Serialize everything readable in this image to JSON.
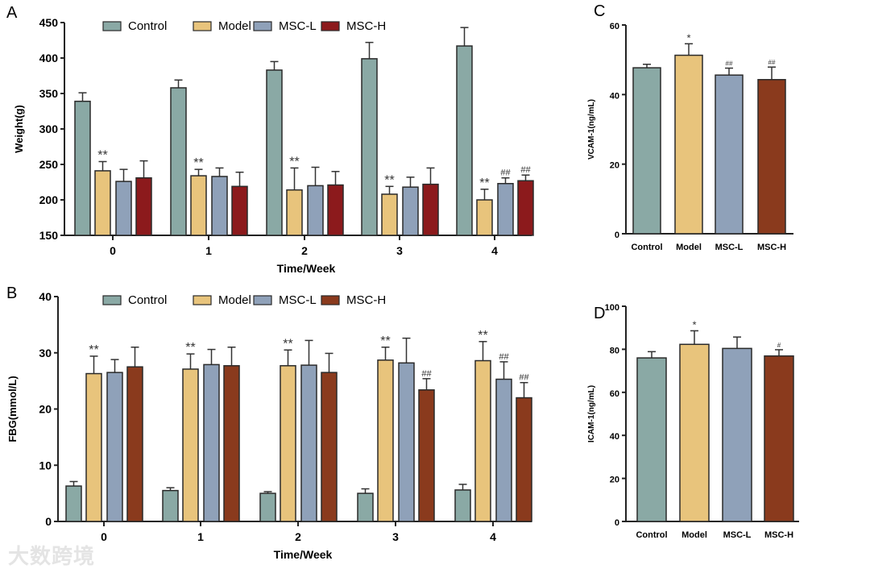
{
  "watermark": "大数跨境",
  "colors": {
    "Control": "#8aa9a5",
    "Model": "#e8c47c",
    "MSC-L": "#8fa1b9",
    "MSC-H-A": "#8c1a1c",
    "MSC-H": "#8a3a1d"
  },
  "chart_data": [
    {
      "panel": "A",
      "type": "bar",
      "title": "",
      "xlabel": "Time/Week",
      "ylabel": "Weight(g)",
      "ylim": [
        150,
        450
      ],
      "yticks": [
        150,
        200,
        250,
        300,
        350,
        400,
        450
      ],
      "categories": [
        "0",
        "1",
        "2",
        "3",
        "4"
      ],
      "legend": "top",
      "series": [
        {
          "name": "Control",
          "values": [
            339,
            358,
            383,
            399,
            417
          ],
          "errors": [
            12,
            11,
            12,
            23,
            26
          ],
          "annot": [
            "",
            "",
            "",
            "",
            ""
          ]
        },
        {
          "name": "Model",
          "values": [
            241,
            234,
            214,
            208,
            200
          ],
          "errors": [
            13,
            9,
            31,
            11,
            15
          ],
          "annot": [
            "**",
            "**",
            "**",
            "**",
            "**"
          ]
        },
        {
          "name": "MSC-L",
          "values": [
            226,
            233,
            220,
            218,
            223
          ],
          "errors": [
            17,
            12,
            26,
            14,
            8
          ],
          "annot": [
            "",
            "",
            "",
            "",
            "##"
          ]
        },
        {
          "name": "MSC-H",
          "values": [
            231,
            219,
            221,
            222,
            227
          ],
          "errors": [
            24,
            20,
            19,
            23,
            8
          ],
          "annot": [
            "",
            "",
            "",
            "",
            "##"
          ]
        }
      ]
    },
    {
      "panel": "B",
      "type": "bar",
      "title": "",
      "xlabel": "Time/Week",
      "ylabel": "FBG(mmol/L)",
      "ylim": [
        0,
        40
      ],
      "yticks": [
        0,
        10,
        20,
        30,
        40
      ],
      "categories": [
        "0",
        "1",
        "2",
        "3",
        "4"
      ],
      "legend": "top",
      "series": [
        {
          "name": "Control",
          "values": [
            6.3,
            5.5,
            5.0,
            5.0,
            5.6
          ],
          "errors": [
            0.8,
            0.5,
            0.3,
            0.8,
            1.0
          ],
          "annot": [
            "",
            "",
            "",
            "",
            ""
          ]
        },
        {
          "name": "Model",
          "values": [
            26.3,
            27.1,
            27.7,
            28.7,
            28.6
          ],
          "errors": [
            3.1,
            2.7,
            2.8,
            2.3,
            3.4
          ],
          "annot": [
            "**",
            "**",
            "**",
            "**",
            "**"
          ]
        },
        {
          "name": "MSC-L",
          "values": [
            26.5,
            27.9,
            27.8,
            28.2,
            25.3
          ],
          "errors": [
            2.3,
            2.7,
            4.4,
            4.4,
            3.1
          ],
          "annot": [
            "",
            "",
            "",
            "",
            "##"
          ]
        },
        {
          "name": "MSC-H",
          "values": [
            27.5,
            27.7,
            26.5,
            23.4,
            22.0
          ],
          "errors": [
            3.5,
            3.3,
            3.4,
            2.0,
            2.7
          ],
          "annot": [
            "",
            "",
            "",
            "##",
            "##"
          ]
        }
      ]
    },
    {
      "panel": "C",
      "type": "bar",
      "title": "",
      "xlabel": "",
      "ylabel": "VCAM-1(ng/mL)",
      "ylim": [
        0,
        60
      ],
      "yticks": [
        0,
        20,
        40,
        60
      ],
      "categories": [
        "Control",
        "Model",
        "MSC-L",
        "MSC-H"
      ],
      "values": [
        47.7,
        51.3,
        45.6,
        44.3
      ],
      "errors": [
        1.0,
        3.3,
        2.0,
        3.6
      ],
      "annot": [
        "",
        "*",
        "##",
        "##"
      ]
    },
    {
      "panel": "D",
      "type": "bar",
      "title": "",
      "xlabel": "",
      "ylabel": "ICAM-1(ng/mL)",
      "ylim": [
        0,
        100
      ],
      "yticks": [
        0,
        20,
        40,
        60,
        80,
        100
      ],
      "categories": [
        "Control",
        "Model",
        "MSC-L",
        "MSC-H"
      ],
      "values": [
        76.0,
        82.3,
        80.4,
        76.9
      ],
      "errors": [
        2.9,
        6.3,
        5.3,
        2.9
      ],
      "annot": [
        "",
        "*",
        "",
        "#"
      ]
    }
  ]
}
